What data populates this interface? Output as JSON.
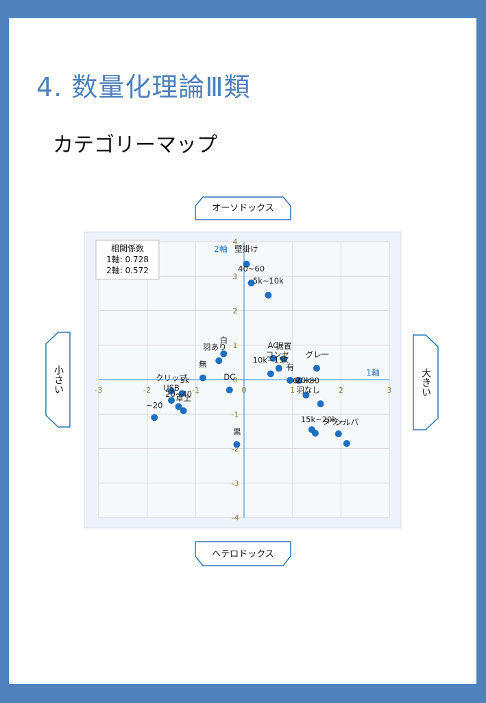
{
  "slide": {
    "title": "4. 数量化理論Ⅲ類",
    "subtitle": "カテゴリーマップ"
  },
  "labels": {
    "top": "オーソドックス",
    "bottom": "ヘテロドックス",
    "left": "小さい",
    "right": "大きい"
  },
  "correlation": {
    "heading": "相関係数",
    "axis1": "1軸: 0.728",
    "axis2": "2軸: 0.572"
  },
  "colors": {
    "frame": "#4f81bd",
    "heading": "#4f81bd",
    "point": "#1f6fc1",
    "axis": "#5b9bd5",
    "axis_label": "#2e75b6",
    "tick": "#8a7f3a"
  },
  "chart_data": {
    "type": "scatter",
    "xlabel": "1軸",
    "ylabel": "2軸",
    "xlim": [
      -3,
      3
    ],
    "ylim": [
      -4,
      4
    ],
    "xticks": [
      -3,
      -2,
      -1,
      0,
      1,
      2,
      3
    ],
    "yticks": [
      -4,
      -3,
      -2,
      -1,
      0,
      1,
      2,
      3,
      4
    ],
    "grid": true,
    "points": [
      {
        "label": "壁掛け",
        "x": 0.05,
        "y": 3.35
      },
      {
        "label": "40~60",
        "x": 0.15,
        "y": 2.8
      },
      {
        "label": "5k~10k",
        "x": 0.5,
        "y": 2.45
      },
      {
        "label": "白",
        "x": -0.42,
        "y": 0.75
      },
      {
        "label": "羽あり",
        "x": -0.52,
        "y": 0.55
      },
      {
        "label": "AC",
        "x": 0.6,
        "y": 0.62
      },
      {
        "label": "据置",
        "x": 0.82,
        "y": 0.6
      },
      {
        "label": "コンセ",
        "x": 0.72,
        "y": 0.33
      },
      {
        "label": "10k~15k",
        "x": 0.55,
        "y": 0.17
      },
      {
        "label": "有",
        "x": 0.95,
        "y": -0.02
      },
      {
        "label": "グレー",
        "x": 1.5,
        "y": 0.33
      },
      {
        "label": "20k~",
        "x": 1.12,
        "y": -0.02
      },
      {
        "label": "無",
        "x": -0.85,
        "y": 0.05
      },
      {
        "label": "DC",
        "x": -0.3,
        "y": -0.3
      },
      {
        "label": "クリップ",
        "x": -1.5,
        "y": -0.33
      },
      {
        "label": "5k",
        "x": -1.28,
        "y": -0.4
      },
      {
        "label": "USB",
        "x": -1.5,
        "y": -0.6
      },
      {
        "label": "20~40",
        "x": -1.35,
        "y": -0.78
      },
      {
        "label": "卓上",
        "x": -1.25,
        "y": -0.9
      },
      {
        "label": "~20",
        "x": -1.85,
        "y": -1.1
      },
      {
        "label": "60~80",
        "x": 1.28,
        "y": -0.45
      },
      {
        "label": "羽なし",
        "x": 1.58,
        "y": -0.7
      },
      {
        "label": "15k~20k",
        "x": 1.4,
        "y": -1.45
      },
      {
        "label": "タワー",
        "x": 1.47,
        "y": -1.55
      },
      {
        "label": "シルバ",
        "x": 1.95,
        "y": -1.57
      },
      {
        "label": "黒",
        "x": 2.12,
        "y": -1.85
      },
      {
        "label": "",
        "x": -0.15,
        "y": -1.88
      }
    ]
  }
}
